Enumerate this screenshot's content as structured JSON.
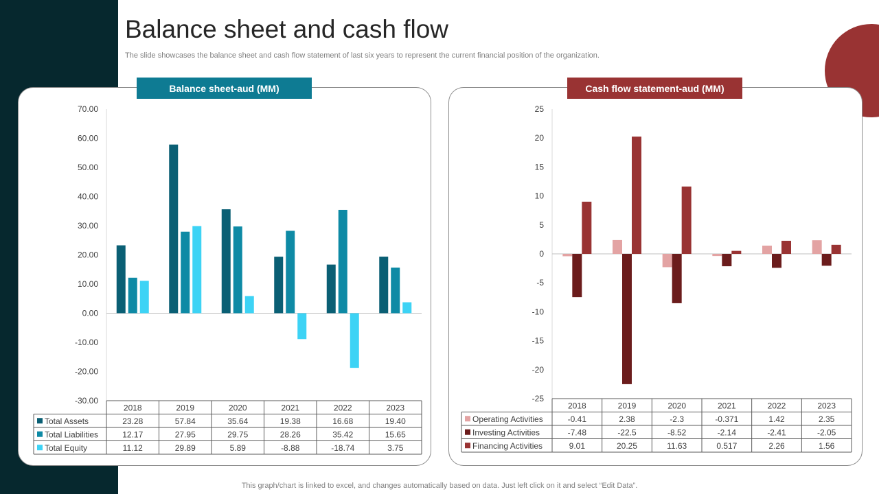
{
  "page": {
    "title": "Balance sheet and cash flow",
    "subtitle": "The slide showcases the balance sheet and cash flow statement of last six years to represent the current financial position of the organization.",
    "footer": "This graph/chart is linked to excel,  and changes automatically based on data. Just left click on it and select “Edit Data”."
  },
  "colors": {
    "sidebar": "#06282e",
    "accent_teal": "#0e7b93",
    "accent_red": "#993333"
  },
  "chart_data": [
    {
      "type": "bar",
      "title": "Balance sheet-aud (MM)",
      "categories": [
        "2018",
        "2019",
        "2020",
        "2021",
        "2022",
        "2023"
      ],
      "ylim": [
        -30,
        70
      ],
      "yticks": [
        "70.00",
        "60.00",
        "50.00",
        "40.00",
        "30.00",
        "20.00",
        "10.00",
        "0.00",
        "-10.00",
        "-20.00",
        "-30.00"
      ],
      "series": [
        {
          "name": "Total Assets",
          "color": "#0a5f74",
          "values": [
            23.28,
            57.84,
            35.64,
            19.38,
            16.68,
            19.4
          ],
          "labels": [
            "23.28",
            "57.84",
            "35.64",
            "19.38",
            "16.68",
            "19.40"
          ]
        },
        {
          "name": "Total Liabilities",
          "color": "#0e8aa5",
          "values": [
            12.17,
            27.95,
            29.75,
            28.26,
            35.42,
            15.65
          ],
          "labels": [
            "12.17",
            "27.95",
            "29.75",
            "28.26",
            "35.42",
            "15.65"
          ]
        },
        {
          "name": "Total Equity",
          "color": "#3dd3f5",
          "values": [
            11.12,
            29.89,
            5.89,
            -8.88,
            -18.74,
            3.75
          ],
          "labels": [
            "11.12",
            "29.89",
            "5.89",
            "-8.88",
            "-18.74",
            "3.75"
          ]
        }
      ]
    },
    {
      "type": "bar",
      "title": "Cash flow statement-aud (MM)",
      "categories": [
        "2018",
        "2019",
        "2020",
        "2021",
        "2022",
        "2023"
      ],
      "ylim": [
        -25,
        25
      ],
      "yticks": [
        "25",
        "20",
        "15",
        "10",
        "5",
        "0",
        "-5",
        "-10",
        "-15",
        "-20",
        "-25"
      ],
      "series": [
        {
          "name": "Operating Activities",
          "color": "#e3a3a3",
          "values": [
            -0.41,
            2.38,
            -2.3,
            -0.371,
            1.42,
            2.35
          ],
          "labels": [
            "-0.41",
            "2.38",
            "-2.3",
            "-0.371",
            "1.42",
            "2.35"
          ]
        },
        {
          "name": "Investing Activities",
          "color": "#6b1c1c",
          "values": [
            -7.48,
            -22.5,
            -8.52,
            -2.14,
            -2.41,
            -2.05
          ],
          "labels": [
            "-7.48",
            "-22.5",
            "-8.52",
            "-2.14",
            "-2.41",
            "-2.05"
          ]
        },
        {
          "name": "Financing Activities",
          "color": "#993333",
          "values": [
            9.01,
            20.25,
            11.63,
            0.517,
            2.26,
            1.56
          ],
          "labels": [
            "9.01",
            "20.25",
            "11.63",
            "0.517",
            "2.26",
            "1.56"
          ]
        }
      ]
    }
  ]
}
